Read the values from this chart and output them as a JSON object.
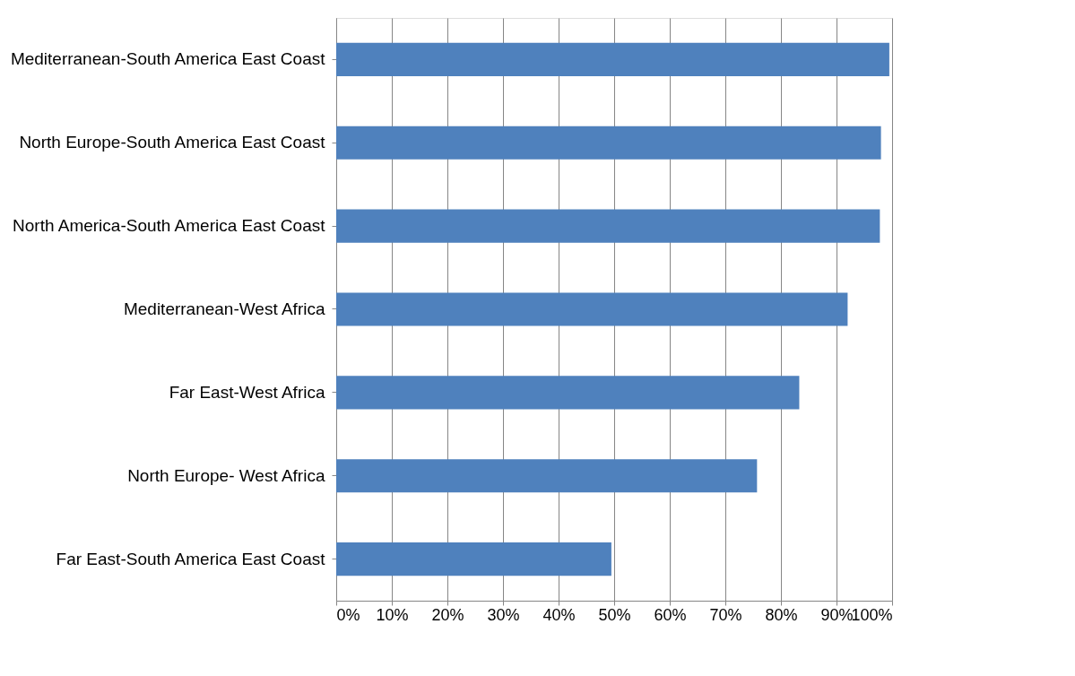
{
  "chart_data": {
    "type": "bar",
    "orientation": "horizontal",
    "categories": [
      "Mediterranean-South America East Coast",
      "North Europe-South America East Coast",
      "North America-South America East Coast",
      "Mediterranean-West Africa",
      "Far East-West Africa",
      "North Europe- West Africa",
      "Far East-South America East Coast"
    ],
    "values": [
      99.5,
      98,
      97.8,
      92,
      83.3,
      75.7,
      49.5
    ],
    "color": "#4f81bd",
    "xlim": [
      0,
      100
    ],
    "xticks": [
      {
        "value": 0,
        "label": "0%"
      },
      {
        "value": 10,
        "label": "10%"
      },
      {
        "value": 20,
        "label": "20%"
      },
      {
        "value": 30,
        "label": "30%"
      },
      {
        "value": 40,
        "label": "40%"
      },
      {
        "value": 50,
        "label": "50%"
      },
      {
        "value": 60,
        "label": "60%"
      },
      {
        "value": 70,
        "label": "70%"
      },
      {
        "value": 80,
        "label": "80%"
      },
      {
        "value": 90,
        "label": "90%"
      },
      {
        "value": 100,
        "label": "100%"
      }
    ],
    "grid": "x"
  }
}
